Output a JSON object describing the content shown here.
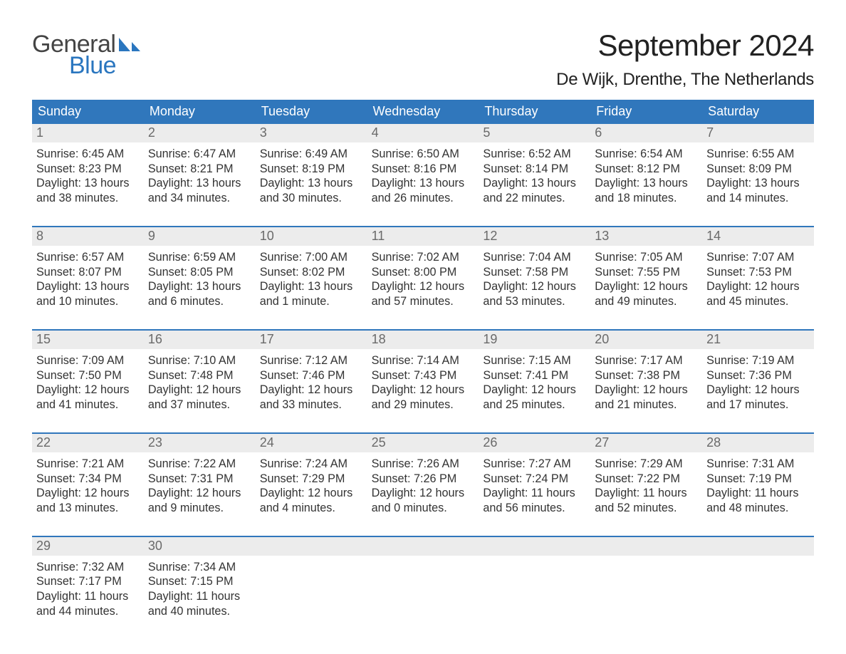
{
  "brand": {
    "text1": "General",
    "text2": "Blue",
    "color_dark": "#444444",
    "color_blue": "#2a76bf"
  },
  "title": "September 2024",
  "location": "De Wijk, Drenthe, The Netherlands",
  "colors": {
    "header_bg": "#3077bc",
    "header_text": "#ffffff",
    "daynum_bg": "#ececec",
    "daynum_text": "#6a6a6a",
    "body_text": "#333333",
    "rule": "#3077bc",
    "page_bg": "#ffffff"
  },
  "typography": {
    "title_size_pt": 32,
    "location_size_pt": 18,
    "dow_size_pt": 14,
    "body_size_pt": 12
  },
  "days_of_week": [
    "Sunday",
    "Monday",
    "Tuesday",
    "Wednesday",
    "Thursday",
    "Friday",
    "Saturday"
  ],
  "weeks": [
    [
      {
        "n": "1",
        "sunrise": "Sunrise: 6:45 AM",
        "sunset": "Sunset: 8:23 PM",
        "d1": "Daylight: 13 hours",
        "d2": "and 38 minutes."
      },
      {
        "n": "2",
        "sunrise": "Sunrise: 6:47 AM",
        "sunset": "Sunset: 8:21 PM",
        "d1": "Daylight: 13 hours",
        "d2": "and 34 minutes."
      },
      {
        "n": "3",
        "sunrise": "Sunrise: 6:49 AM",
        "sunset": "Sunset: 8:19 PM",
        "d1": "Daylight: 13 hours",
        "d2": "and 30 minutes."
      },
      {
        "n": "4",
        "sunrise": "Sunrise: 6:50 AM",
        "sunset": "Sunset: 8:16 PM",
        "d1": "Daylight: 13 hours",
        "d2": "and 26 minutes."
      },
      {
        "n": "5",
        "sunrise": "Sunrise: 6:52 AM",
        "sunset": "Sunset: 8:14 PM",
        "d1": "Daylight: 13 hours",
        "d2": "and 22 minutes."
      },
      {
        "n": "6",
        "sunrise": "Sunrise: 6:54 AM",
        "sunset": "Sunset: 8:12 PM",
        "d1": "Daylight: 13 hours",
        "d2": "and 18 minutes."
      },
      {
        "n": "7",
        "sunrise": "Sunrise: 6:55 AM",
        "sunset": "Sunset: 8:09 PM",
        "d1": "Daylight: 13 hours",
        "d2": "and 14 minutes."
      }
    ],
    [
      {
        "n": "8",
        "sunrise": "Sunrise: 6:57 AM",
        "sunset": "Sunset: 8:07 PM",
        "d1": "Daylight: 13 hours",
        "d2": "and 10 minutes."
      },
      {
        "n": "9",
        "sunrise": "Sunrise: 6:59 AM",
        "sunset": "Sunset: 8:05 PM",
        "d1": "Daylight: 13 hours",
        "d2": "and 6 minutes."
      },
      {
        "n": "10",
        "sunrise": "Sunrise: 7:00 AM",
        "sunset": "Sunset: 8:02 PM",
        "d1": "Daylight: 13 hours",
        "d2": "and 1 minute."
      },
      {
        "n": "11",
        "sunrise": "Sunrise: 7:02 AM",
        "sunset": "Sunset: 8:00 PM",
        "d1": "Daylight: 12 hours",
        "d2": "and 57 minutes."
      },
      {
        "n": "12",
        "sunrise": "Sunrise: 7:04 AM",
        "sunset": "Sunset: 7:58 PM",
        "d1": "Daylight: 12 hours",
        "d2": "and 53 minutes."
      },
      {
        "n": "13",
        "sunrise": "Sunrise: 7:05 AM",
        "sunset": "Sunset: 7:55 PM",
        "d1": "Daylight: 12 hours",
        "d2": "and 49 minutes."
      },
      {
        "n": "14",
        "sunrise": "Sunrise: 7:07 AM",
        "sunset": "Sunset: 7:53 PM",
        "d1": "Daylight: 12 hours",
        "d2": "and 45 minutes."
      }
    ],
    [
      {
        "n": "15",
        "sunrise": "Sunrise: 7:09 AM",
        "sunset": "Sunset: 7:50 PM",
        "d1": "Daylight: 12 hours",
        "d2": "and 41 minutes."
      },
      {
        "n": "16",
        "sunrise": "Sunrise: 7:10 AM",
        "sunset": "Sunset: 7:48 PM",
        "d1": "Daylight: 12 hours",
        "d2": "and 37 minutes."
      },
      {
        "n": "17",
        "sunrise": "Sunrise: 7:12 AM",
        "sunset": "Sunset: 7:46 PM",
        "d1": "Daylight: 12 hours",
        "d2": "and 33 minutes."
      },
      {
        "n": "18",
        "sunrise": "Sunrise: 7:14 AM",
        "sunset": "Sunset: 7:43 PM",
        "d1": "Daylight: 12 hours",
        "d2": "and 29 minutes."
      },
      {
        "n": "19",
        "sunrise": "Sunrise: 7:15 AM",
        "sunset": "Sunset: 7:41 PM",
        "d1": "Daylight: 12 hours",
        "d2": "and 25 minutes."
      },
      {
        "n": "20",
        "sunrise": "Sunrise: 7:17 AM",
        "sunset": "Sunset: 7:38 PM",
        "d1": "Daylight: 12 hours",
        "d2": "and 21 minutes."
      },
      {
        "n": "21",
        "sunrise": "Sunrise: 7:19 AM",
        "sunset": "Sunset: 7:36 PM",
        "d1": "Daylight: 12 hours",
        "d2": "and 17 minutes."
      }
    ],
    [
      {
        "n": "22",
        "sunrise": "Sunrise: 7:21 AM",
        "sunset": "Sunset: 7:34 PM",
        "d1": "Daylight: 12 hours",
        "d2": "and 13 minutes."
      },
      {
        "n": "23",
        "sunrise": "Sunrise: 7:22 AM",
        "sunset": "Sunset: 7:31 PM",
        "d1": "Daylight: 12 hours",
        "d2": "and 9 minutes."
      },
      {
        "n": "24",
        "sunrise": "Sunrise: 7:24 AM",
        "sunset": "Sunset: 7:29 PM",
        "d1": "Daylight: 12 hours",
        "d2": "and 4 minutes."
      },
      {
        "n": "25",
        "sunrise": "Sunrise: 7:26 AM",
        "sunset": "Sunset: 7:26 PM",
        "d1": "Daylight: 12 hours",
        "d2": "and 0 minutes."
      },
      {
        "n": "26",
        "sunrise": "Sunrise: 7:27 AM",
        "sunset": "Sunset: 7:24 PM",
        "d1": "Daylight: 11 hours",
        "d2": "and 56 minutes."
      },
      {
        "n": "27",
        "sunrise": "Sunrise: 7:29 AM",
        "sunset": "Sunset: 7:22 PM",
        "d1": "Daylight: 11 hours",
        "d2": "and 52 minutes."
      },
      {
        "n": "28",
        "sunrise": "Sunrise: 7:31 AM",
        "sunset": "Sunset: 7:19 PM",
        "d1": "Daylight: 11 hours",
        "d2": "and 48 minutes."
      }
    ],
    [
      {
        "n": "29",
        "sunrise": "Sunrise: 7:32 AM",
        "sunset": "Sunset: 7:17 PM",
        "d1": "Daylight: 11 hours",
        "d2": "and 44 minutes."
      },
      {
        "n": "30",
        "sunrise": "Sunrise: 7:34 AM",
        "sunset": "Sunset: 7:15 PM",
        "d1": "Daylight: 11 hours",
        "d2": "and 40 minutes."
      },
      {
        "n": "",
        "sunrise": "",
        "sunset": "",
        "d1": "",
        "d2": ""
      },
      {
        "n": "",
        "sunrise": "",
        "sunset": "",
        "d1": "",
        "d2": ""
      },
      {
        "n": "",
        "sunrise": "",
        "sunset": "",
        "d1": "",
        "d2": ""
      },
      {
        "n": "",
        "sunrise": "",
        "sunset": "",
        "d1": "",
        "d2": ""
      },
      {
        "n": "",
        "sunrise": "",
        "sunset": "",
        "d1": "",
        "d2": ""
      }
    ]
  ]
}
